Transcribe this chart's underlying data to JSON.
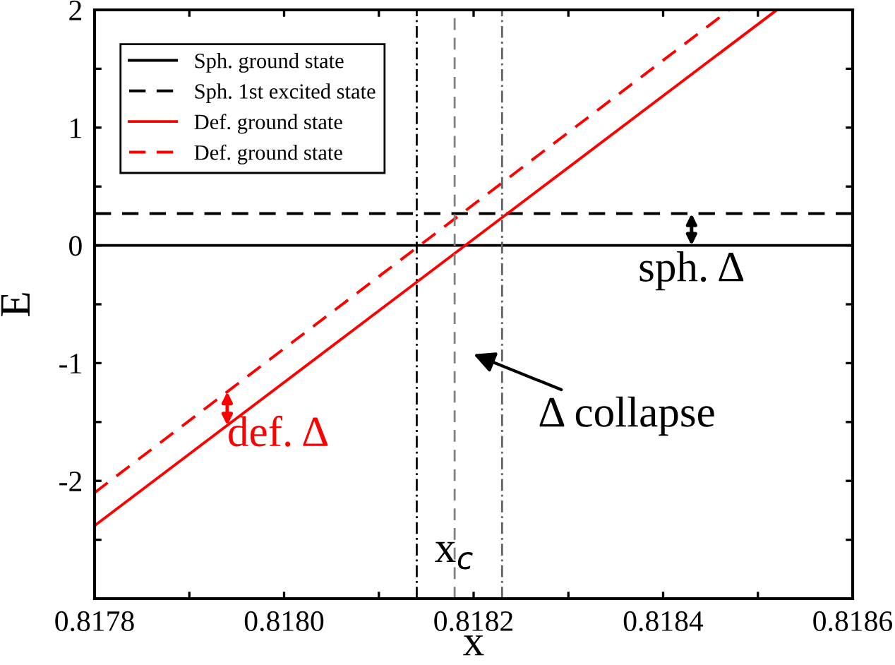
{
  "chart_data": {
    "type": "line",
    "xlabel": "x",
    "ylabel": "E",
    "xlim": [
      0.8178,
      0.8186
    ],
    "ylim": [
      -3,
      2
    ],
    "xticks": [
      0.8178,
      {
        "value": 0.8179,
        "label": null
      },
      {
        "value": 0.818,
        "label": "0.8180"
      },
      {
        "value": 0.8181,
        "label": null
      },
      0.8182,
      {
        "value": 0.8183,
        "label": null
      },
      0.8184,
      {
        "value": 0.8185,
        "label": null
      },
      0.8186
    ],
    "yticks": [
      {
        "value": -3,
        "label": null
      },
      {
        "value": -2.5,
        "label": null
      },
      -2,
      {
        "value": -1.5,
        "label": null
      },
      -1,
      {
        "value": -0.5,
        "label": null
      },
      0,
      {
        "value": 0.5,
        "label": null
      },
      1,
      {
        "value": 1.5,
        "label": null
      },
      2
    ],
    "series": [
      {
        "name": "Sph. ground state",
        "color": "#000000",
        "line_style": "solid",
        "x": [
          0.8178,
          0.8186
        ],
        "values": [
          0,
          0
        ]
      },
      {
        "name": "Sph. 1st excited state",
        "color": "#000000",
        "line_style": "dashed",
        "x": [
          0.8178,
          0.8186
        ],
        "values": [
          0.27,
          0.27
        ]
      },
      {
        "name": "Def. ground state",
        "color": "#ff0000",
        "line_style": "solid",
        "x": [
          0.8178,
          0.81852
        ],
        "values": [
          -2.38,
          2.0
        ]
      },
      {
        "name": "Def. ground state",
        "color": "#ff0000",
        "line_style": "dashed",
        "x": [
          0.8178,
          0.81847
        ],
        "values": [
          -2.1,
          2.0
        ]
      }
    ],
    "ref_lines": [
      {
        "axis": "x",
        "value": 0.81814,
        "color": "#000000",
        "line_style": "dashdot"
      },
      {
        "axis": "x",
        "value": 0.81818,
        "color": "#808080",
        "line_style": "dashed"
      },
      {
        "axis": "x",
        "value": 0.81823,
        "color": "#606060",
        "line_style": "dashdot"
      }
    ],
    "annotations": [
      {
        "text": "sph. Δ",
        "x": 0.81843,
        "y": -0.05
      },
      {
        "text": "def. Δ",
        "x": 0.81794,
        "y": -1.45
      },
      "Δ collapse",
      {
        "text": "x$_{c}$",
        "x": 0.81818,
        "y": -2.6
      }
    ],
    "legend": "top left",
    "grid": false
  }
}
